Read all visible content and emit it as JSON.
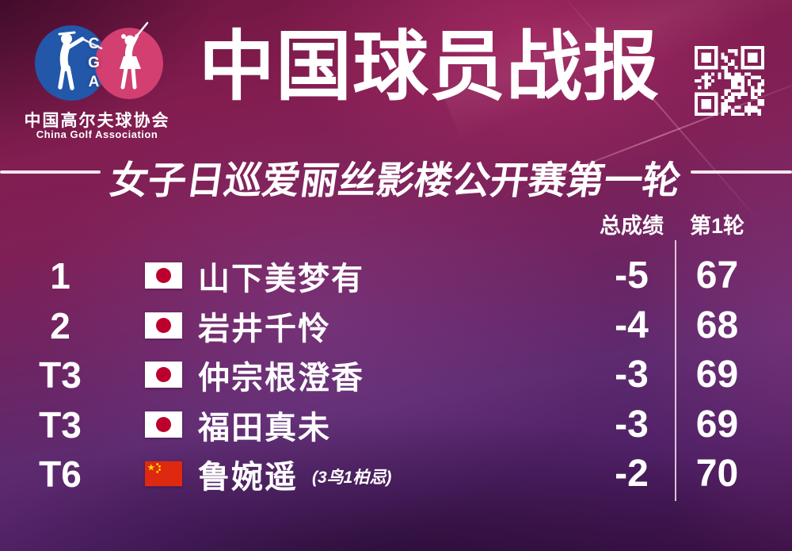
{
  "header": {
    "logo": {
      "cga_letters": "CGA",
      "org_name_cn": "中国高尔夫球协会",
      "org_name_en": "China Golf Association"
    },
    "title": "中国球员战报"
  },
  "subtitle": "女子日巡爱丽丝影楼公开赛第一轮",
  "table": {
    "headers": {
      "total": "总成绩",
      "round1": "第1轮"
    },
    "rows": [
      {
        "rank": "1",
        "flag": "japan",
        "name": "山下美梦有",
        "note": "",
        "total": "-5",
        "round1": "67"
      },
      {
        "rank": "2",
        "flag": "japan",
        "name": "岩井千怜",
        "note": "",
        "total": "-4",
        "round1": "68"
      },
      {
        "rank": "T3",
        "flag": "japan",
        "name": "仲宗根澄香",
        "note": "",
        "total": "-3",
        "round1": "69"
      },
      {
        "rank": "T3",
        "flag": "japan",
        "name": "福田真未",
        "note": "",
        "total": "-3",
        "round1": "69"
      },
      {
        "rank": "T6",
        "flag": "china",
        "name": "鲁婉遥",
        "note": "(3鸟1柏忌)",
        "total": "-2",
        "round1": "70"
      }
    ]
  },
  "colors": {
    "background_top": "#831d50",
    "background_bottom": "#3b1047",
    "text": "#ffffff",
    "divider": "#f3e6ee",
    "logo_blue": "#2257aa",
    "logo_pink": "#d23f70",
    "japan_flag_red": "#bc002d",
    "china_flag_red": "#de2910",
    "china_flag_yellow": "#ffde00"
  }
}
